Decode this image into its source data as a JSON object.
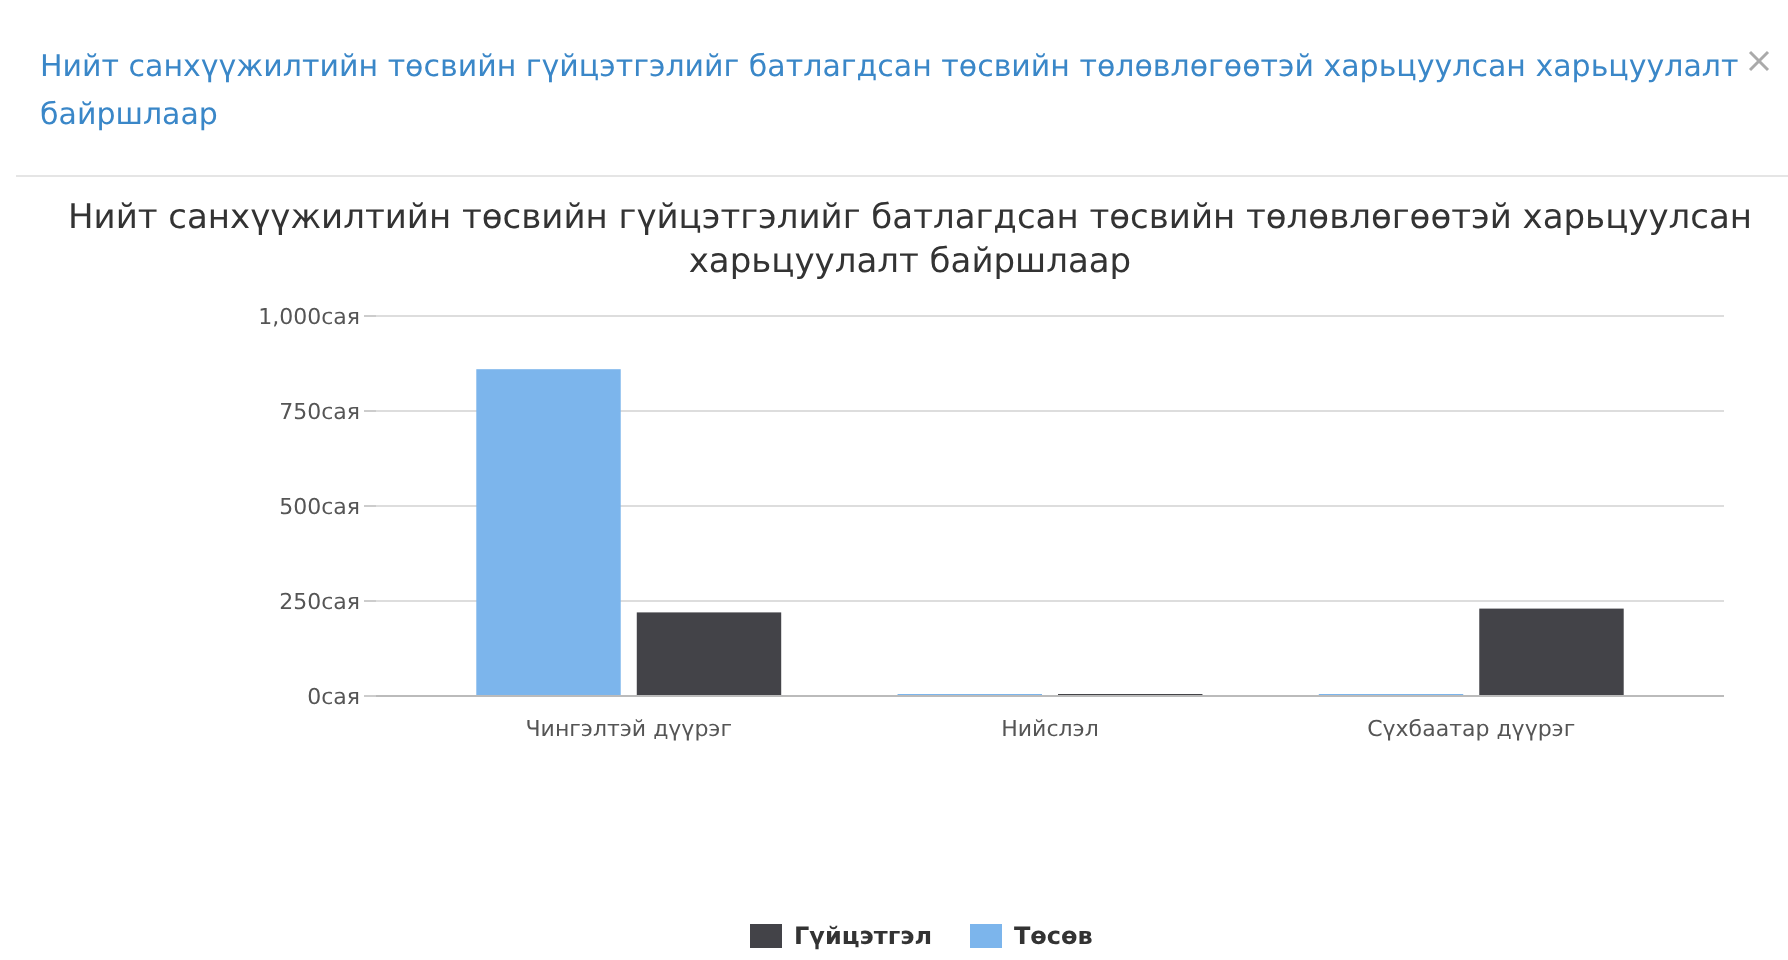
{
  "chart_data": {
    "type": "bar",
    "title": "Нийт санхүүжилтийн төсвийн гүйцэтгэлийг батлагдсан төсвийн төлөвлөгөөтэй харьцуулсан харьцуулалт байршлаар",
    "annotations": [
      "Нийт санхүүжилтийн төсвийн гүйцэтгэлийг батлагдсан төсвийн төлөвлөгөөтэй харьцуулсан харьцуулалт байршлаар"
    ],
    "categories": [
      "Чингэлтэй дүүрэг",
      "Нийслэл",
      "Сүхбаатар дүүрэг"
    ],
    "series": [
      {
        "name": "Төсөв",
        "color": "#7cb5ec",
        "values": [
          860,
          0,
          0
        ]
      },
      {
        "name": "Гүйцэтгэл",
        "color": "#434348",
        "values": [
          220,
          0,
          230
        ]
      }
    ],
    "ylim": [
      0,
      1000
    ],
    "yticks": [
      {
        "value": 0,
        "label": "0сая"
      },
      {
        "value": 250,
        "label": "250сая"
      },
      {
        "value": 500,
        "label": "500сая"
      },
      {
        "value": 750,
        "label": "750сая"
      },
      {
        "value": 1000,
        "label": "1,000сая"
      }
    ],
    "grid": "y",
    "legend": "bottom"
  }
}
